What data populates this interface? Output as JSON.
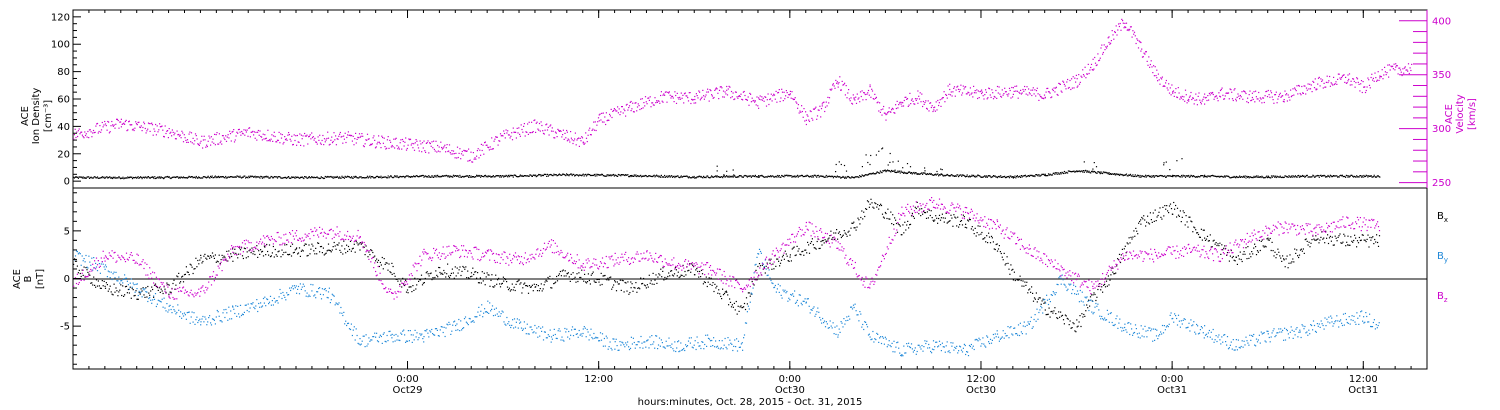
{
  "colors": {
    "black": "#000000",
    "magenta": "#cc00cc",
    "blue": "#1f88d8"
  },
  "time_axis": {
    "title": "hours:minutes, Oct. 28, 2015 - Oct. 31, 2015",
    "ticks": [
      {
        "hours": 24,
        "time": "0:00",
        "date": "Oct29"
      },
      {
        "hours": 36,
        "time": "12:00",
        "date": ""
      },
      {
        "hours": 48,
        "time": "0:00",
        "date": "Oct30"
      },
      {
        "hours": 60,
        "time": "12:00",
        "date": "Oct30"
      },
      {
        "hours": 72,
        "time": "0:00",
        "date": "Oct31"
      },
      {
        "hours": 84,
        "time": "12:00",
        "date": "Oct31"
      }
    ]
  },
  "chart_data": [
    {
      "type": "scatter",
      "panel": "plasma",
      "x_range_hours": [
        3,
        88
      ],
      "left_axis": {
        "label_lines": [
          "ACE",
          "Ion Density",
          "[cm⁻³]"
        ],
        "ylim": [
          -5,
          125
        ],
        "ticks": [
          "0",
          "20",
          "40",
          "60",
          "80",
          "100",
          "120"
        ]
      },
      "right_axis": {
        "label_lines": [
          "ACE",
          "Velocity",
          "[km/s]"
        ],
        "ylim": [
          245,
          410
        ],
        "ticks": [
          "250",
          "300",
          "350",
          "400"
        ]
      },
      "series": [
        {
          "name": "Ion Density",
          "color": "black",
          "axis": "left",
          "points": [
            [
              3,
              3
            ],
            [
              8,
              3
            ],
            [
              13,
              3.5
            ],
            [
              18,
              3
            ],
            [
              22,
              3.5
            ],
            [
              26,
              4
            ],
            [
              30,
              4
            ],
            [
              34,
              5
            ],
            [
              38,
              4.5
            ],
            [
              42,
              3.5
            ],
            [
              46,
              4
            ],
            [
              50,
              4
            ],
            [
              52,
              3
            ],
            [
              54,
              8
            ],
            [
              56,
              6
            ],
            [
              58,
              4.5
            ],
            [
              60,
              4
            ],
            [
              62,
              3.5
            ],
            [
              64,
              5
            ],
            [
              66,
              8
            ],
            [
              68,
              6
            ],
            [
              70,
              4
            ],
            [
              72,
              4
            ],
            [
              74,
              4
            ],
            [
              76,
              3.5
            ],
            [
              78,
              3.5
            ],
            [
              80,
              4
            ],
            [
              82,
              4
            ],
            [
              85,
              4
            ]
          ],
          "spikes": [
            [
              44,
              12
            ],
            [
              51,
              15
            ],
            [
              53,
              20
            ],
            [
              54,
              25
            ],
            [
              55,
              18
            ],
            [
              57,
              12
            ],
            [
              67,
              15
            ],
            [
              72,
              20
            ]
          ]
        },
        {
          "name": "Velocity",
          "color": "magenta",
          "axis": "right",
          "points": [
            [
              3,
              295
            ],
            [
              6,
              305
            ],
            [
              9,
              298
            ],
            [
              11,
              288
            ],
            [
              14,
              297
            ],
            [
              17,
              290
            ],
            [
              20,
              292
            ],
            [
              23,
              287
            ],
            [
              26,
              283
            ],
            [
              28,
              275
            ],
            [
              30,
              293
            ],
            [
              32,
              303
            ],
            [
              34,
              293
            ],
            [
              35,
              288
            ],
            [
              36,
              308
            ],
            [
              38,
              320
            ],
            [
              40,
              330
            ],
            [
              42,
              329
            ],
            [
              44,
              335
            ],
            [
              46,
              325
            ],
            [
              48,
              334
            ],
            [
              49,
              310
            ],
            [
              50,
              318
            ],
            [
              51,
              345
            ],
            [
              52,
              325
            ],
            [
              53,
              335
            ],
            [
              54,
              312
            ],
            [
              55,
              325
            ],
            [
              56,
              330
            ],
            [
              57,
              320
            ],
            [
              58,
              336
            ],
            [
              60,
              333
            ],
            [
              62,
              335
            ],
            [
              64,
              332
            ],
            [
              66,
              345
            ],
            [
              67,
              360
            ],
            [
              68,
              382
            ],
            [
              69,
              400
            ],
            [
              70,
              375
            ],
            [
              71,
              350
            ],
            [
              72,
              335
            ],
            [
              73,
              330
            ],
            [
              74,
              327
            ],
            [
              75,
              333
            ],
            [
              77,
              330
            ],
            [
              79,
              330
            ],
            [
              81,
              342
            ],
            [
              83,
              347
            ],
            [
              84,
              338
            ],
            [
              85,
              352
            ],
            [
              86,
              355
            ],
            [
              87,
              357
            ]
          ]
        }
      ]
    },
    {
      "type": "scatter",
      "panel": "magnetic-field",
      "x_range_hours": [
        3,
        88
      ],
      "left_axis": {
        "label_lines": [
          "ACE",
          "B",
          "[nT]"
        ],
        "ylim": [
          -9.5,
          9.5
        ],
        "ticks": [
          "-5",
          "0",
          "5"
        ]
      },
      "zero_line": 0,
      "series": [
        {
          "name": "Bx",
          "color": "black",
          "points": [
            [
              3,
              1.5
            ],
            [
              5,
              -1
            ],
            [
              7,
              -1.5
            ],
            [
              9,
              -1
            ],
            [
              11,
              2
            ],
            [
              13,
              2.5
            ],
            [
              15,
              3
            ],
            [
              17,
              3
            ],
            [
              19,
              3.2
            ],
            [
              21,
              3.5
            ],
            [
              23,
              1
            ],
            [
              24,
              -1
            ],
            [
              26,
              1
            ],
            [
              28,
              0.5
            ],
            [
              30,
              -0.5
            ],
            [
              32,
              -1
            ],
            [
              34,
              0.5
            ],
            [
              36,
              0
            ],
            [
              38,
              -1
            ],
            [
              40,
              0.5
            ],
            [
              42,
              1
            ],
            [
              44,
              -2
            ],
            [
              45,
              -3.5
            ],
            [
              46,
              1
            ],
            [
              48,
              2.5
            ],
            [
              50,
              4
            ],
            [
              52,
              5.5
            ],
            [
              53,
              8
            ],
            [
              54,
              7
            ],
            [
              55,
              5
            ],
            [
              56,
              7.5
            ],
            [
              57,
              6.5
            ],
            [
              59,
              6
            ],
            [
              61,
              3.5
            ],
            [
              62,
              0.5
            ],
            [
              64,
              -3
            ],
            [
              66,
              -5
            ],
            [
              67,
              -2
            ],
            [
              68,
              0
            ],
            [
              70,
              6
            ],
            [
              72,
              7.5
            ],
            [
              74,
              4.5
            ],
            [
              76,
              2
            ],
            [
              78,
              4
            ],
            [
              79,
              1.5
            ],
            [
              81,
              4.5
            ],
            [
              83,
              4
            ],
            [
              85,
              4
            ]
          ]
        },
        {
          "name": "By",
          "color": "blue",
          "points": [
            [
              3,
              2.5
            ],
            [
              5,
              1
            ],
            [
              7,
              -1
            ],
            [
              9,
              -3
            ],
            [
              11,
              -4.5
            ],
            [
              13,
              -3.5
            ],
            [
              15,
              -2.5
            ],
            [
              17,
              -1
            ],
            [
              19,
              -1.5
            ],
            [
              21,
              -6.5
            ],
            [
              23,
              -6
            ],
            [
              25,
              -6
            ],
            [
              27,
              -5
            ],
            [
              29,
              -3
            ],
            [
              31,
              -5
            ],
            [
              33,
              -6
            ],
            [
              35,
              -5.5
            ],
            [
              37,
              -7
            ],
            [
              39,
              -6.5
            ],
            [
              41,
              -7
            ],
            [
              43,
              -6.5
            ],
            [
              45,
              -7
            ],
            [
              46,
              3
            ],
            [
              47,
              -1
            ],
            [
              49,
              -2.5
            ],
            [
              51,
              -5.5
            ],
            [
              52,
              -3
            ],
            [
              53,
              -6
            ],
            [
              55,
              -7.5
            ],
            [
              57,
              -7
            ],
            [
              59,
              -7.5
            ],
            [
              61,
              -6
            ],
            [
              63,
              -5
            ],
            [
              65,
              0
            ],
            [
              67,
              -3
            ],
            [
              69,
              -5
            ],
            [
              71,
              -6
            ],
            [
              72,
              -4
            ],
            [
              74,
              -5.5
            ],
            [
              76,
              -7
            ],
            [
              78,
              -6
            ],
            [
              80,
              -5.5
            ],
            [
              82,
              -4.5
            ],
            [
              84,
              -4
            ],
            [
              85,
              -5
            ]
          ]
        },
        {
          "name": "Bz",
          "color": "magenta",
          "points": [
            [
              3,
              -0.5
            ],
            [
              5,
              2.5
            ],
            [
              7,
              2
            ],
            [
              9,
              -1.5
            ],
            [
              11,
              -1.5
            ],
            [
              13,
              3
            ],
            [
              15,
              4
            ],
            [
              17,
              4.5
            ],
            [
              19,
              5
            ],
            [
              21,
              4.5
            ],
            [
              22,
              1
            ],
            [
              23,
              -2
            ],
            [
              25,
              2.5
            ],
            [
              27,
              3
            ],
            [
              29,
              2.5
            ],
            [
              31,
              2
            ],
            [
              33,
              3.5
            ],
            [
              35,
              1.5
            ],
            [
              37,
              2
            ],
            [
              39,
              2.5
            ],
            [
              41,
              1.5
            ],
            [
              43,
              1
            ],
            [
              45,
              -1
            ],
            [
              47,
              2.5
            ],
            [
              49,
              5.5
            ],
            [
              51,
              3.5
            ],
            [
              53,
              -1
            ],
            [
              55,
              7
            ],
            [
              57,
              8
            ],
            [
              59,
              7
            ],
            [
              61,
              5.5
            ],
            [
              63,
              3
            ],
            [
              65,
              1
            ],
            [
              67,
              -1
            ],
            [
              69,
              2.5
            ],
            [
              71,
              2.5
            ],
            [
              73,
              3
            ],
            [
              75,
              2.5
            ],
            [
              77,
              4.5
            ],
            [
              79,
              5.5
            ],
            [
              81,
              5
            ],
            [
              83,
              6
            ],
            [
              85,
              5.5
            ]
          ]
        }
      ],
      "legend": {
        "placement": "right",
        "entries": [
          {
            "base": "B",
            "sub": "x",
            "color": "black"
          },
          {
            "base": "B",
            "sub": "y",
            "color": "blue"
          },
          {
            "base": "B",
            "sub": "z",
            "color": "magenta"
          }
        ]
      }
    }
  ]
}
